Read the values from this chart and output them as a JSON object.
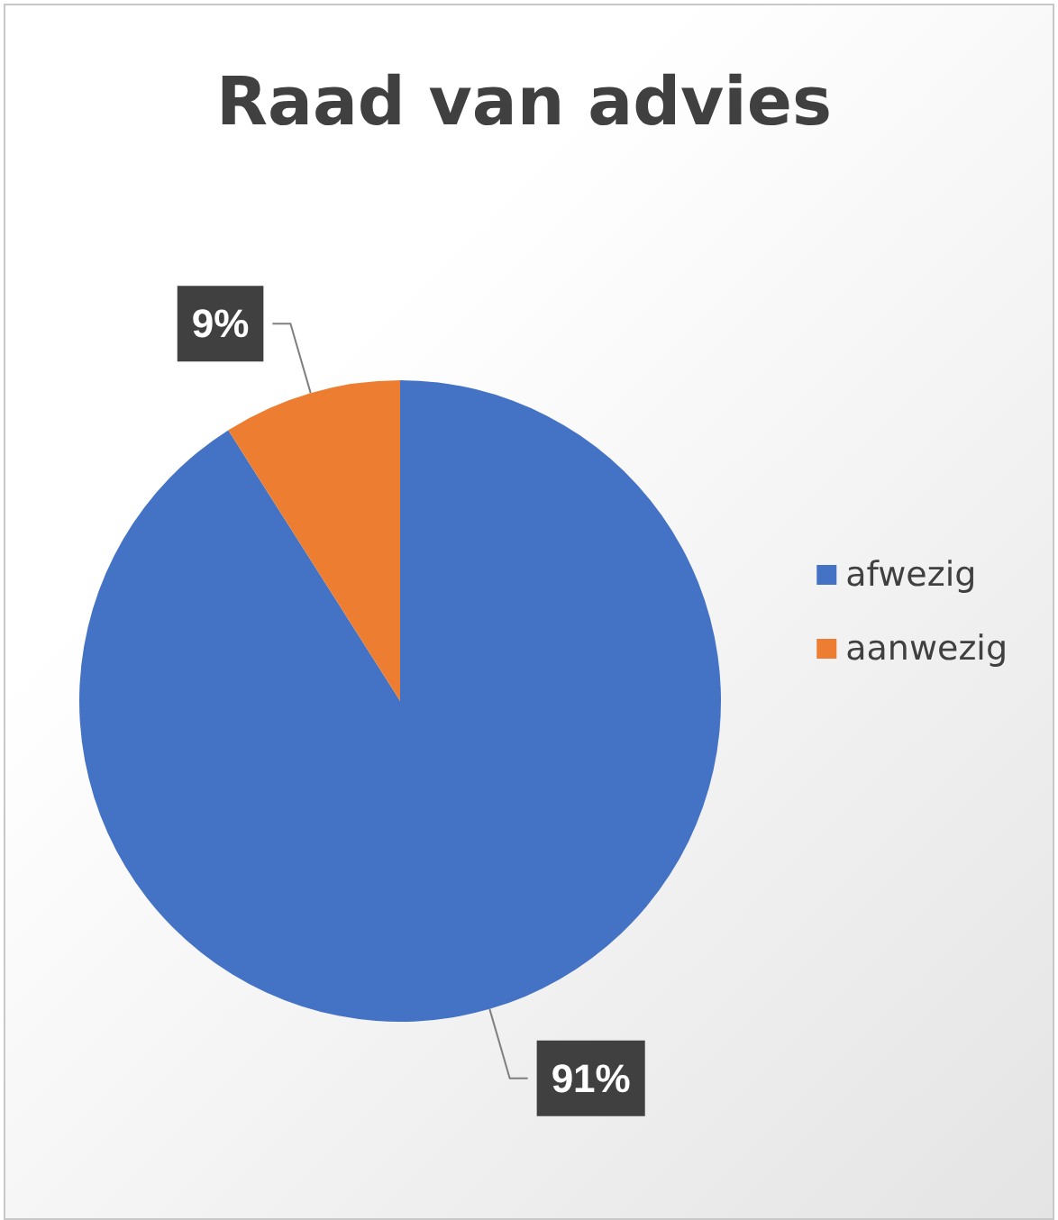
{
  "chart_data": {
    "type": "pie",
    "title": "Raad van advies",
    "categories": [
      "afwezig",
      "aanwezig"
    ],
    "values": [
      91,
      9
    ],
    "colors": [
      "#4472c4",
      "#ed7d31"
    ],
    "value_labels": [
      "91%",
      "9%"
    ],
    "legend": "right"
  }
}
